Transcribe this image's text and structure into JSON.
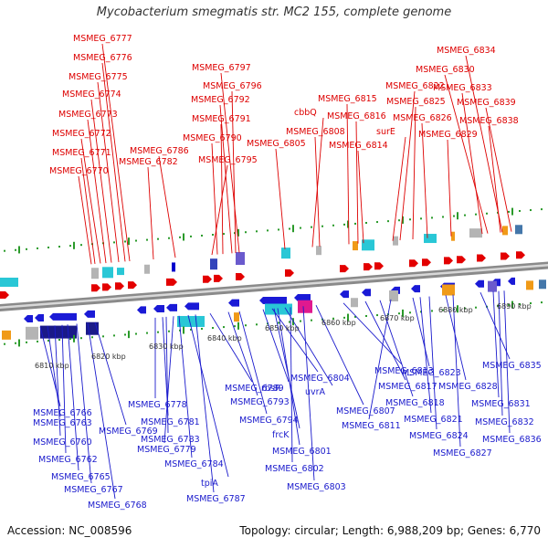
{
  "title": "Mycobacterium smegmatis str. MC2 155, complete genome",
  "footer": {
    "accession": "Accession: NC_008596",
    "summary": "Topology: circular; Length: 6,988,209 bp; Genes: 6,770"
  },
  "colors": {
    "forward_label": "#dd0000",
    "reverse_label": "#1a1acc",
    "backbone": "#8a8a8a",
    "tick": "#2a9a2a",
    "cyan": "#29c7d6",
    "magenta": "#e0198f",
    "orange": "#f09a18",
    "gray": "#b4b4b4"
  },
  "scale_labels": [
    "6810 kbp",
    "6820 kbp",
    "6830 kbp",
    "6840 kbp",
    "6850 kbp",
    "6860 kbp",
    "6870 kbp",
    "6880 kbp",
    "6890 kbp"
  ],
  "forward_labels": [
    "MSMEG_6777",
    "MSMEG_6776",
    "MSMEG_6775",
    "MSMEG_6774",
    "MSMEG_6773",
    "MSMEG_6772",
    "MSMEG_6771",
    "MSMEG_6770",
    "MSMEG_6797",
    "MSMEG_6796",
    "MSMEG_6792",
    "MSMEG_6791",
    "MSMEG_6790",
    "MSMEG_6786",
    "MSMEG_6782",
    "MSMEG_6795",
    "cbbQ",
    "MSMEG_6815",
    "MSMEG_6808",
    "MSMEG_6816",
    "MSMEG_6805",
    "MSMEG_6814",
    "MSMEG_6822",
    "MSMEG_6825",
    "surE",
    "MSMEG_6826",
    "MSMEG_6829",
    "MSMEG_6834",
    "MSMEG_6830",
    "MSMEG_6833",
    "MSMEG_6839",
    "MSMEG_6838"
  ],
  "reverse_labels": [
    "MSMEG_6766",
    "MSMEG_6763",
    "MSMEG_6760",
    "MSMEG_6762",
    "MSMEG_6765",
    "MSMEG_6767",
    "MSMEG_6768",
    "MSMEG_6769",
    "MSMEG_6778",
    "MSMEG_6781",
    "MSMEG_6783",
    "MSMEG_6779",
    "MSMEG_6784",
    "tpiA",
    "MSMEG_6787",
    "MSMEG_6789",
    "MSMEG_6793",
    "MSMEG_6794",
    "rbsR",
    "MSMEG_6804",
    "uvrA",
    "frcK",
    "MSMEG_6801",
    "MSMEG_6802",
    "MSMEG_6803",
    "MSMEG_6807",
    "MSMEG_6813",
    "MSMEG_6817",
    "MSMEG_6818",
    "MSMEG_6811",
    "MSMEG_6823",
    "MSMEG_6821",
    "MSMEG_6824",
    "MSMEG_6828",
    "MSMEG_6827",
    "MSMEG_6835",
    "MSMEG_6831",
    "MSMEG_6832",
    "MSMEG_6836"
  ]
}
